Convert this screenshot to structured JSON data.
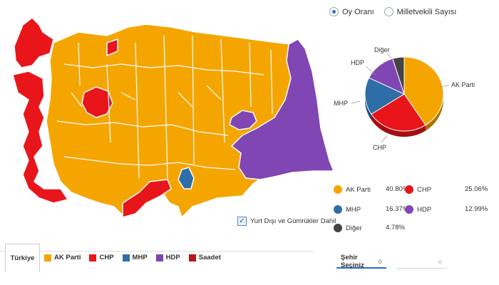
{
  "view_options": {
    "vote_share": "Oy Oranı",
    "seat_count": "Milletvekili Sayısı"
  },
  "abroad_checkbox": "Yurt Dışı ve Gümrükler Dahil",
  "colors": {
    "ak": "#f5a500",
    "chp": "#e8151b",
    "mhp": "#2e6ea6",
    "hdp": "#8046b3",
    "diger": "#444444",
    "saadet": "#b6161c"
  },
  "results": [
    {
      "party": "AK Parti",
      "pct": "40.80%",
      "value": 40.8,
      "color": "#f5a500"
    },
    {
      "party": "CHP",
      "pct": "25.06%",
      "value": 25.06,
      "color": "#e8151b"
    },
    {
      "party": "MHP",
      "pct": "16.37%",
      "value": 16.37,
      "color": "#2e6ea6"
    },
    {
      "party": "HDP",
      "pct": "12.99%",
      "value": 12.99,
      "color": "#8046b3"
    },
    {
      "party": "Diğer",
      "pct": "4.78%",
      "value": 4.78,
      "color": "#444444"
    }
  ],
  "pie_labels": {
    "ak": "AK Parti",
    "chp": "CHP",
    "mhp": "MHP",
    "hdp": "HDP",
    "diger": "Diğer"
  },
  "tab_label": "Türkiye",
  "map_legend": [
    "AK Parti",
    "CHP",
    "MHP",
    "HDP",
    "Saadet"
  ],
  "city_select": {
    "label": "Şehir Seçiniz",
    "arrow": "◇"
  },
  "second_select": {
    "label": "",
    "arrow": "◇"
  }
}
